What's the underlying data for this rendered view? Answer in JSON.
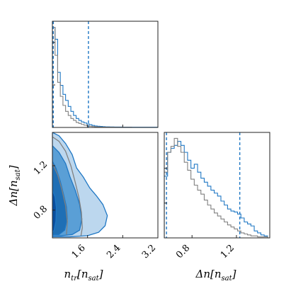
{
  "colors": {
    "primary": "#1f77c4",
    "reference": "#808080",
    "fill_light": "#bcd7ee",
    "fill_mid": "#5a9fd6",
    "fill_dark": "#1f6fb5",
    "fill_core": "#0a4f9e",
    "frame": "#222222"
  },
  "chart_data": [
    {
      "panel": "top-left",
      "type": "histogram",
      "x_param": "n_tr",
      "xlim": [
        0.8,
        3.2
      ],
      "x_ticks": [
        1.6,
        2.4,
        3.2
      ],
      "bin_edges": [
        0.8,
        0.86,
        0.92,
        0.98,
        1.04,
        1.1,
        1.16,
        1.22,
        1.28,
        1.34,
        1.4,
        1.46,
        1.52,
        1.58,
        1.64,
        1.7,
        1.76,
        1.82,
        1.88,
        1.94,
        2.0,
        2.1,
        2.2,
        2.4,
        2.6,
        3.2
      ],
      "series": [
        {
          "role": "primary",
          "values": [
            1.0,
            0.88,
            0.55,
            0.42,
            0.33,
            0.27,
            0.21,
            0.16,
            0.12,
            0.09,
            0.07,
            0.055,
            0.045,
            0.035,
            0.028,
            0.02,
            0.015,
            0.012,
            0.01,
            0.008,
            0.006,
            0.005,
            0.004,
            0.003,
            0.002
          ]
        },
        {
          "role": "reference",
          "values": [
            1.0,
            0.72,
            0.45,
            0.31,
            0.22,
            0.16,
            0.12,
            0.09,
            0.07,
            0.05,
            0.04,
            0.03,
            0.022,
            0.016,
            0.012,
            0.009,
            0.007,
            0.005,
            0.004,
            0.003,
            0.002,
            0.002,
            0.001,
            0.001,
            0.0
          ]
        }
      ],
      "quantile_lines": [
        0.82,
        1.62
      ]
    },
    {
      "panel": "bottom-left",
      "type": "contour",
      "xlabel": "n_tr[n_sat]",
      "ylabel": "Δn[n_sat]",
      "xlim": [
        0.8,
        3.2
      ],
      "ylim": [
        0.55,
        1.5
      ],
      "x_ticks": [
        "1.6",
        "2.4",
        "3.2"
      ],
      "y_ticks": [
        "0.8",
        "1.2"
      ],
      "x_tick_values": [
        1.6,
        2.4,
        3.2
      ],
      "y_tick_values": [
        0.8,
        1.2
      ],
      "contours": [
        {
          "level": "outer",
          "points": [
            [
              0.8,
              1.5
            ],
            [
              0.95,
              1.47
            ],
            [
              1.1,
              1.4
            ],
            [
              1.25,
              1.3
            ],
            [
              1.35,
              1.18
            ],
            [
              1.5,
              1.1
            ],
            [
              1.65,
              1.0
            ],
            [
              1.8,
              0.93
            ],
            [
              1.95,
              0.85
            ],
            [
              2.05,
              0.75
            ],
            [
              2.0,
              0.66
            ],
            [
              1.85,
              0.6
            ],
            [
              1.6,
              0.57
            ],
            [
              1.2,
              0.56
            ],
            [
              0.8,
              0.56
            ]
          ]
        },
        {
          "level": "mid",
          "points": [
            [
              0.8,
              1.38
            ],
            [
              0.95,
              1.32
            ],
            [
              1.1,
              1.22
            ],
            [
              1.2,
              1.1
            ],
            [
              1.32,
              0.98
            ],
            [
              1.42,
              0.85
            ],
            [
              1.47,
              0.72
            ],
            [
              1.42,
              0.62
            ],
            [
              1.25,
              0.58
            ],
            [
              1.0,
              0.57
            ],
            [
              0.8,
              0.57
            ]
          ]
        },
        {
          "level": "inner",
          "points": [
            [
              0.8,
              1.24
            ],
            [
              0.88,
              1.18
            ],
            [
              0.98,
              1.06
            ],
            [
              1.05,
              0.95
            ],
            [
              1.12,
              0.83
            ],
            [
              1.14,
              0.72
            ],
            [
              1.08,
              0.62
            ],
            [
              0.95,
              0.58
            ],
            [
              0.8,
              0.58
            ]
          ]
        },
        {
          "level": "core",
          "points": [
            [
              0.8,
              0.98
            ],
            [
              0.86,
              0.92
            ],
            [
              0.89,
              0.82
            ],
            [
              0.88,
              0.7
            ],
            [
              0.84,
              0.62
            ],
            [
              0.8,
              0.6
            ]
          ]
        }
      ],
      "reference_contours": [
        {
          "points": [
            [
              0.8,
              1.46
            ],
            [
              0.95,
              1.42
            ],
            [
              1.1,
              1.33
            ],
            [
              1.22,
              1.2
            ],
            [
              1.32,
              1.05
            ],
            [
              1.4,
              0.92
            ],
            [
              1.46,
              0.78
            ],
            [
              1.48,
              0.64
            ],
            [
              1.45,
              0.57
            ]
          ]
        },
        {
          "points": [
            [
              0.8,
              1.22
            ],
            [
              0.92,
              1.12
            ],
            [
              1.02,
              0.98
            ],
            [
              1.1,
              0.84
            ],
            [
              1.14,
              0.7
            ],
            [
              1.12,
              0.58
            ]
          ]
        }
      ]
    },
    {
      "panel": "bottom-right",
      "type": "histogram",
      "xlabel": "Δn[n_sat]",
      "xlim": [
        0.55,
        1.5
      ],
      "x_ticks": [
        "0.8",
        "1.2"
      ],
      "x_tick_values": [
        0.8,
        1.2
      ],
      "bin_edges": [
        0.55,
        0.58,
        0.61,
        0.64,
        0.67,
        0.7,
        0.73,
        0.76,
        0.79,
        0.82,
        0.85,
        0.88,
        0.91,
        0.94,
        0.97,
        1.0,
        1.03,
        1.06,
        1.09,
        1.12,
        1.15,
        1.18,
        1.21,
        1.24,
        1.27,
        1.3,
        1.33,
        1.36,
        1.39,
        1.42,
        1.45,
        1.48
      ],
      "series": [
        {
          "role": "primary",
          "values": [
            0.62,
            0.86,
            0.9,
            0.93,
            0.97,
            0.93,
            0.86,
            0.78,
            0.7,
            0.74,
            0.66,
            0.6,
            0.56,
            0.52,
            0.48,
            0.45,
            0.42,
            0.37,
            0.33,
            0.29,
            0.27,
            0.26,
            0.24,
            0.2,
            0.16,
            0.14,
            0.12,
            0.07,
            0.05,
            0.03,
            0.02
          ]
        },
        {
          "role": "reference",
          "values": [
            0.66,
            0.86,
            0.92,
            1.0,
            0.92,
            0.86,
            0.76,
            0.68,
            0.59,
            0.53,
            0.48,
            0.44,
            0.38,
            0.33,
            0.29,
            0.25,
            0.22,
            0.19,
            0.16,
            0.13,
            0.11,
            0.09,
            0.07,
            0.05,
            0.04,
            0.03,
            0.02,
            0.02,
            0.01,
            0.01,
            0.01
          ]
        }
      ],
      "quantile_lines": [
        0.57,
        1.23
      ]
    }
  ],
  "labels": {
    "x_left": "n",
    "x_left_sub": "tr",
    "x_left_br": "[n",
    "x_left_br_sub": "sat",
    "x_left_close": "]",
    "x_right": "Δn[n",
    "x_right_sub": "sat",
    "x_right_close": "]",
    "y_left": "Δn[n",
    "y_left_sub": "sat",
    "y_left_close": "]"
  }
}
